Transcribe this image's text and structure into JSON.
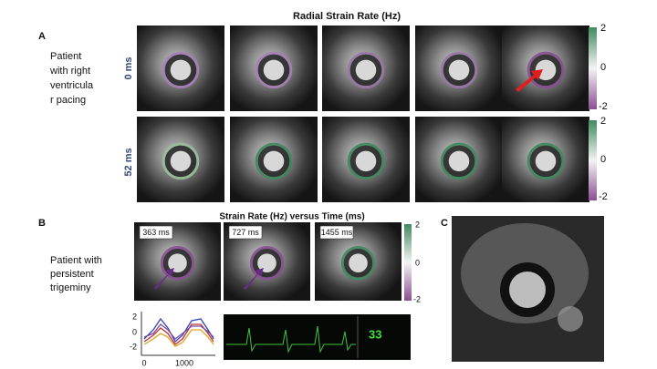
{
  "title": "Radial Strain Rate (Hz)",
  "panel_a": {
    "label": "A",
    "description": [
      "Patient",
      "with right",
      "ventricula",
      "r pacing"
    ],
    "rows": [
      "0 ms",
      "52 ms"
    ],
    "colorbar_ticks": [
      "2",
      "0",
      "-2"
    ]
  },
  "panel_b": {
    "label": "B",
    "title": "Strain Rate (Hz) versus Time (ms)",
    "description": [
      "Patient with",
      "persistent",
      "trigeminy"
    ],
    "frames": [
      "363 ms",
      "727 ms",
      "1455 ms"
    ],
    "colorbar_ticks": [
      "2",
      "0",
      "-2"
    ],
    "plot": {
      "yticks": [
        "2",
        "0",
        "-2"
      ],
      "xticks": [
        "0",
        "1000"
      ]
    },
    "ecg_value": "33"
  },
  "panel_c": {
    "label": "C"
  }
}
